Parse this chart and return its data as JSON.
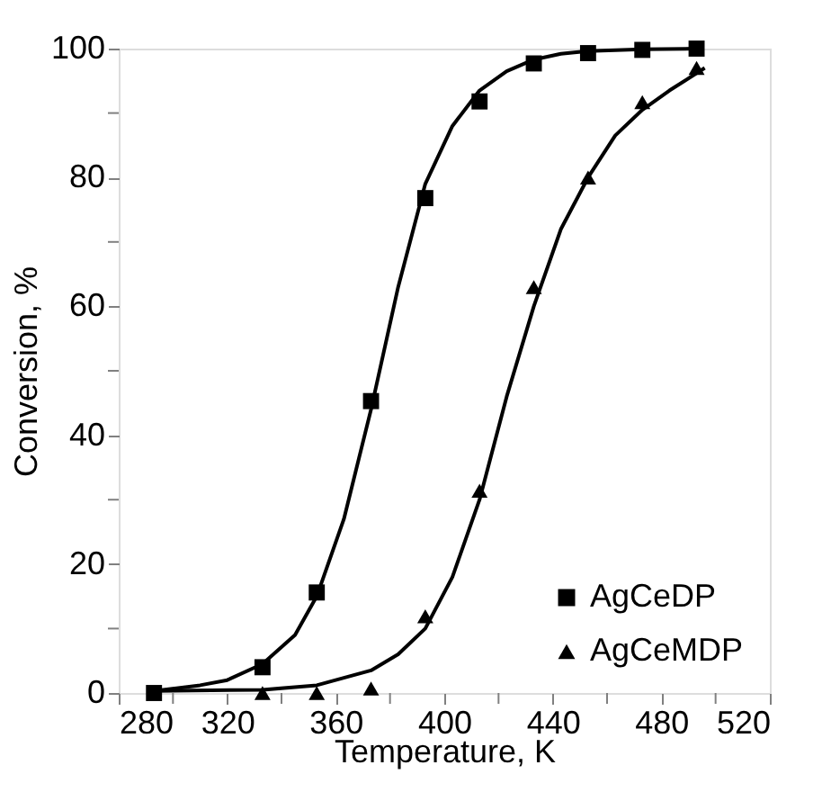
{
  "chart_data": {
    "type": "scatter",
    "xlabel": "Temperature, K",
    "ylabel": "Conversion, %",
    "xlim": [
      280,
      520
    ],
    "ylim": [
      0,
      100
    ],
    "xticks": [
      280,
      {
        "value": 300,
        "label": null
      },
      320,
      {
        "value": 340,
        "label": null
      },
      360,
      {
        "value": 380,
        "label": null
      },
      400,
      {
        "value": 420,
        "label": null
      },
      440,
      {
        "value": 460,
        "label": null
      },
      480,
      {
        "value": 500,
        "label": null
      },
      520
    ],
    "yticks": [
      0,
      {
        "value": 10,
        "label": null
      },
      20,
      {
        "value": 30,
        "label": null
      },
      40,
      {
        "value": 50,
        "label": null
      },
      60,
      {
        "value": 70,
        "label": null
      },
      80,
      {
        "value": 90,
        "label": null
      },
      100
    ],
    "grid": false,
    "legend": "bottom right",
    "series": [
      {
        "name": "AgCeDP",
        "type": "scatter",
        "marker": "square",
        "color": "#000000",
        "x": [
          293,
          333,
          353,
          373,
          393,
          413,
          433,
          453,
          473,
          493
        ],
        "values": [
          0,
          4,
          15.6,
          45.3,
          76.8,
          91.8,
          97.7,
          99.3,
          99.8,
          100
        ]
      },
      {
        "name": "AgCeMDP",
        "type": "scatter",
        "marker": "triangle",
        "color": "#000000",
        "x": [
          333,
          353,
          373,
          393,
          413,
          433,
          453,
          473,
          493
        ],
        "values": [
          0,
          0,
          0.7,
          11.9,
          31.4,
          63,
          80,
          91.7,
          97
        ]
      },
      {
        "type": "line",
        "line_style": "solid",
        "color": "#000000",
        "x": [
          293,
          310,
          320,
          333,
          345,
          353,
          363,
          373,
          383,
          393,
          403,
          413,
          423,
          433,
          443,
          453,
          473,
          493
        ],
        "values": [
          0.3,
          1.2,
          2,
          4.5,
          9,
          15,
          27,
          44,
          63,
          79,
          88,
          93.5,
          96.5,
          98.3,
          99.2,
          99.6,
          99.9,
          100
        ]
      },
      {
        "type": "line",
        "line_style": "solid",
        "color": "#000000",
        "x": [
          293,
          333,
          353,
          373,
          383,
          393,
          403,
          413,
          423,
          433,
          443,
          453,
          463,
          473,
          483,
          496
        ],
        "values": [
          0.3,
          0.5,
          1.2,
          3.5,
          6,
          10,
          18,
          30,
          46,
          60,
          72,
          80,
          86.5,
          90.5,
          93.5,
          97
        ]
      }
    ]
  }
}
